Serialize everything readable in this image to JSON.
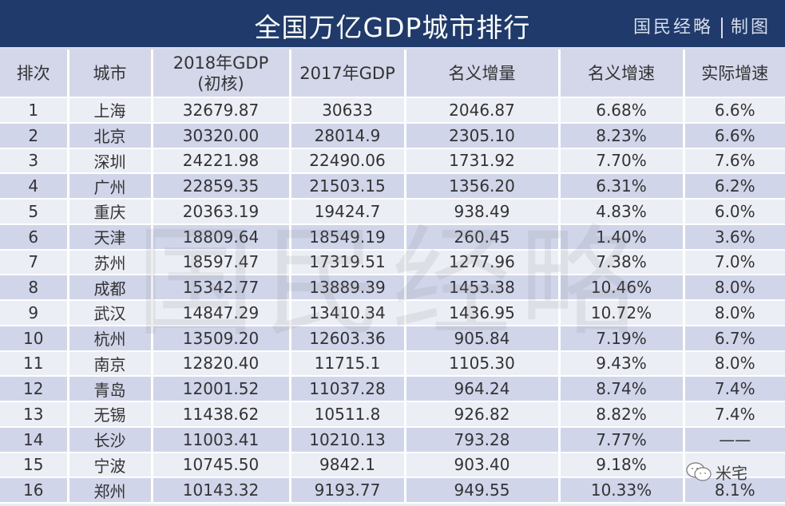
{
  "banner": {
    "title": "全国万亿GDP城市排行",
    "credit_left": "国民经略",
    "credit_right": "制图",
    "background_color": "#1f3a6b"
  },
  "table": {
    "headers": {
      "rank": "排次",
      "city": "城市",
      "gdp2018_line1": "2018年GDP",
      "gdp2018_line2": "(初核)",
      "gdp2017": "2017年GDP",
      "nominal_increase": "名义增量",
      "nominal_growth": "名义增速",
      "real_growth": "实际增速"
    },
    "rows": [
      {
        "rank": "1",
        "city": "上海",
        "gdp2018": "32679.87",
        "gdp2017": "30633",
        "increase": "2046.87",
        "nominal": "6.68%",
        "real": "6.6%"
      },
      {
        "rank": "2",
        "city": "北京",
        "gdp2018": "30320.00",
        "gdp2017": "28014.9",
        "increase": "2305.10",
        "nominal": "8.23%",
        "real": "6.6%"
      },
      {
        "rank": "3",
        "city": "深圳",
        "gdp2018": "24221.98",
        "gdp2017": "22490.06",
        "increase": "1731.92",
        "nominal": "7.70%",
        "real": "7.6%"
      },
      {
        "rank": "4",
        "city": "广州",
        "gdp2018": "22859.35",
        "gdp2017": "21503.15",
        "increase": "1356.20",
        "nominal": "6.31%",
        "real": "6.2%"
      },
      {
        "rank": "5",
        "city": "重庆",
        "gdp2018": "20363.19",
        "gdp2017": "19424.7",
        "increase": "938.49",
        "nominal": "4.83%",
        "real": "6.0%"
      },
      {
        "rank": "6",
        "city": "天津",
        "gdp2018": "18809.64",
        "gdp2017": "18549.19",
        "increase": "260.45",
        "nominal": "1.40%",
        "real": "3.6%"
      },
      {
        "rank": "7",
        "city": "苏州",
        "gdp2018": "18597.47",
        "gdp2017": "17319.51",
        "increase": "1277.96",
        "nominal": "7.38%",
        "real": "7.0%"
      },
      {
        "rank": "8",
        "city": "成都",
        "gdp2018": "15342.77",
        "gdp2017": "13889.39",
        "increase": "1453.38",
        "nominal": "10.46%",
        "real": "8.0%"
      },
      {
        "rank": "9",
        "city": "武汉",
        "gdp2018": "14847.29",
        "gdp2017": "13410.34",
        "increase": "1436.95",
        "nominal": "10.72%",
        "real": "8.0%"
      },
      {
        "rank": "10",
        "city": "杭州",
        "gdp2018": "13509.20",
        "gdp2017": "12603.36",
        "increase": "905.84",
        "nominal": "7.19%",
        "real": "6.7%"
      },
      {
        "rank": "11",
        "city": "南京",
        "gdp2018": "12820.40",
        "gdp2017": "11715.1",
        "increase": "1105.30",
        "nominal": "9.43%",
        "real": "8.0%"
      },
      {
        "rank": "12",
        "city": "青岛",
        "gdp2018": "12001.52",
        "gdp2017": "11037.28",
        "increase": "964.24",
        "nominal": "8.74%",
        "real": "7.4%"
      },
      {
        "rank": "13",
        "city": "无锡",
        "gdp2018": "11438.62",
        "gdp2017": "10511.8",
        "increase": "926.82",
        "nominal": "8.82%",
        "real": "7.4%"
      },
      {
        "rank": "14",
        "city": "长沙",
        "gdp2018": "11003.41",
        "gdp2017": "10210.13",
        "increase": "793.28",
        "nominal": "7.77%",
        "real": "——"
      },
      {
        "rank": "15",
        "city": "宁波",
        "gdp2018": "10745.50",
        "gdp2017": "9842.1",
        "increase": "903.40",
        "nominal": "9.18%",
        "real": ""
      },
      {
        "rank": "16",
        "city": "郑州",
        "gdp2018": "10143.32",
        "gdp2017": "9193.77",
        "increase": "949.55",
        "nominal": "10.33%",
        "real": "8.1%"
      }
    ]
  },
  "watermark": {
    "text": "国民经略",
    "wechat_label": "米宅"
  }
}
